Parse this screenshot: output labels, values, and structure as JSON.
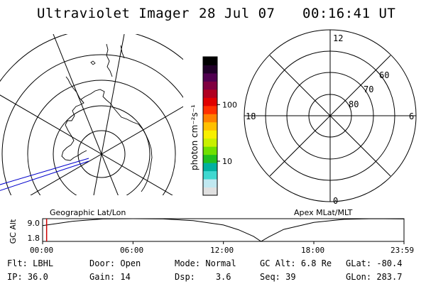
{
  "header": {
    "instrument": "Ultraviolet Imager",
    "date": "28 Jul 07",
    "time": "00:16:41 UT"
  },
  "colorbar": {
    "unit_label": "photon cm⁻²s⁻¹",
    "tick_labels": [
      "100",
      "10"
    ],
    "ticks": [
      {
        "value": 100
      },
      {
        "value": 10
      }
    ],
    "min_value": 2.5,
    "max_value": 700,
    "scale": "log",
    "colors": [
      "#e0e0e0",
      "#c0e8f0",
      "#40d8d0",
      "#00b0a0",
      "#20c020",
      "#70e000",
      "#c8f000",
      "#f8f000",
      "#ffc000",
      "#ff8000",
      "#ff3000",
      "#e00000",
      "#b00020",
      "#800040",
      "#500050",
      "#200028",
      "#000000"
    ]
  },
  "left_panel": {
    "label": "Geographic Lat/Lon",
    "track_color": "#0000cc"
  },
  "right_panel": {
    "label": "Apex MLat/MLT",
    "mlt_labels": {
      "top": "12",
      "left": "18",
      "right": "6",
      "bottom": "0"
    },
    "lat_labels": [
      "60",
      "70",
      "80"
    ]
  },
  "altitude_panel": {
    "ylabel": "GC Alt",
    "ytick_labels": [
      "9.0",
      "1.8"
    ],
    "xtick_labels": [
      "00:00",
      "06:00",
      "12:00",
      "18:00",
      "23:59"
    ],
    "marker_color": "#cc0000"
  },
  "chart_data": {
    "type": "line",
    "title": "",
    "xlabel": "",
    "ylabel": "GC Alt",
    "x": [
      "00:00",
      "02:00",
      "04:00",
      "06:00",
      "08:00",
      "10:00",
      "12:00",
      "13:00",
      "14:00",
      "14:30",
      "15:00",
      "16:00",
      "18:00",
      "20:00",
      "22:00",
      "23:59"
    ],
    "series": [
      {
        "values": [
          6.8,
          8.2,
          8.9,
          9.0,
          8.9,
          8.4,
          7.0,
          5.5,
          3.4,
          1.8,
          3.2,
          5.6,
          7.8,
          8.8,
          9.0,
          8.9
        ]
      }
    ],
    "ylim": [
      1.8,
      9.0
    ],
    "current_time": "00:16"
  },
  "info": {
    "col1": [
      {
        "label": "Flt:",
        "value": "LBHL"
      },
      {
        "label": "IP:",
        "value": "36.0"
      }
    ],
    "col2": [
      {
        "label": "Door:",
        "value": "Open"
      },
      {
        "label": "Gain:",
        "value": "14"
      }
    ],
    "col3": [
      {
        "label": "Mode:",
        "value": "Normal"
      },
      {
        "label": "Dsp:",
        "value": "3.6"
      }
    ],
    "col4": [
      {
        "label": "GC Alt:",
        "value": "6.8 Re"
      },
      {
        "label": "Seq:",
        "value": "39"
      }
    ],
    "col5": [
      {
        "label": "GLat:",
        "value": "-80.4"
      },
      {
        "label": "GLon:",
        "value": "283.7"
      }
    ]
  }
}
